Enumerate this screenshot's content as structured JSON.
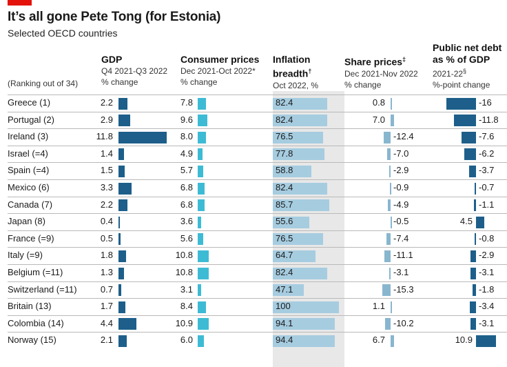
{
  "header": {
    "title": "It’s all gone Pete Tong (for Estonia)",
    "subtitle": "Selected OECD countries",
    "ranking_note": "(Ranking out of 34)"
  },
  "columns": [
    {
      "key": "gdp",
      "title": "GDP",
      "lines": [
        "Q4 2021-Q3 2022",
        "% change"
      ]
    },
    {
      "key": "cpi",
      "title": "Consumer prices",
      "lines": [
        "Dec 2021-Oct 2022*",
        "% change"
      ]
    },
    {
      "key": "infl",
      "title_lines": [
        "Inflation",
        "breadth"
      ],
      "mark": "†",
      "lines": [
        "Oct 2022, %"
      ]
    },
    {
      "key": "share",
      "title": "Share prices",
      "mark": "‡",
      "lines": [
        "Dec 2021-Nov 2022",
        "% change"
      ]
    },
    {
      "key": "debt",
      "title_lines": [
        "Public net debt",
        "as % of GDP"
      ],
      "lines": [
        "2021-22",
        "%-point change"
      ],
      "mark": "§"
    }
  ],
  "colors": {
    "gdp": "#1d5f8a",
    "cpi": "#3ebbd4",
    "infl": "#a6cce0",
    "share": "#89b6cf",
    "debt": "#1d5f8a",
    "band": "#e8e8e8",
    "accent": "#e3120b"
  },
  "chart_data": {
    "type": "table",
    "title": "It’s all gone Pete Tong (for Estonia)",
    "subtitle": "Selected OECD countries",
    "rows": [
      {
        "country": "Greece (1)",
        "gdp": 2.2,
        "cpi": 7.8,
        "infl": 82.4,
        "share": 0.8,
        "debt": -16,
        "gdp_t": "2.2",
        "cpi_t": "7.8",
        "infl_t": "82.4",
        "share_t": "0.8",
        "debt_t": "-16"
      },
      {
        "country": "Portugal (2)",
        "gdp": 2.9,
        "cpi": 9.6,
        "infl": 82.4,
        "share": 7.0,
        "debt": -11.8,
        "gdp_t": "2.9",
        "cpi_t": "9.6",
        "infl_t": "82.4",
        "share_t": "7.0",
        "debt_t": "-11.8"
      },
      {
        "country": "Ireland (3)",
        "gdp": 11.8,
        "cpi": 8.0,
        "infl": 76.5,
        "share": -12.4,
        "debt": -7.6,
        "gdp_t": "11.8",
        "cpi_t": "8.0",
        "infl_t": "76.5",
        "share_t": "-12.4",
        "debt_t": "-7.6"
      },
      {
        "country": "Israel (=4)",
        "gdp": 1.4,
        "cpi": 4.9,
        "infl": 77.8,
        "share": -7.0,
        "debt": -6.2,
        "gdp_t": "1.4",
        "cpi_t": "4.9",
        "infl_t": "77.8",
        "share_t": "-7.0",
        "debt_t": "-6.2"
      },
      {
        "country": "Spain (=4)",
        "gdp": 1.5,
        "cpi": 5.7,
        "infl": 58.8,
        "share": -2.9,
        "debt": -3.7,
        "gdp_t": "1.5",
        "cpi_t": "5.7",
        "infl_t": "58.8",
        "share_t": "-2.9",
        "debt_t": "-3.7"
      },
      {
        "country": "Mexico (6)",
        "gdp": 3.3,
        "cpi": 6.8,
        "infl": 82.4,
        "share": -0.9,
        "debt": -0.7,
        "gdp_t": "3.3",
        "cpi_t": "6.8",
        "infl_t": "82.4",
        "share_t": "-0.9",
        "debt_t": "-0.7"
      },
      {
        "country": "Canada (7)",
        "gdp": 2.2,
        "cpi": 6.8,
        "infl": 85.7,
        "share": -4.9,
        "debt": -1.1,
        "gdp_t": "2.2",
        "cpi_t": "6.8",
        "infl_t": "85.7",
        "share_t": "-4.9",
        "debt_t": "-1.1"
      },
      {
        "country": "Japan (8)",
        "gdp": 0.4,
        "cpi": 3.6,
        "infl": 55.6,
        "share": -0.5,
        "debt": 4.5,
        "gdp_t": "0.4",
        "cpi_t": "3.6",
        "infl_t": "55.6",
        "share_t": "-0.5",
        "debt_t": "4.5"
      },
      {
        "country": "France (=9)",
        "gdp": 0.5,
        "cpi": 5.6,
        "infl": 76.5,
        "share": -7.4,
        "debt": -0.8,
        "gdp_t": "0.5",
        "cpi_t": "5.6",
        "infl_t": "76.5",
        "share_t": "-7.4",
        "debt_t": "-0.8"
      },
      {
        "country": "Italy (=9)",
        "gdp": 1.8,
        "cpi": 10.8,
        "infl": 64.7,
        "share": -11.1,
        "debt": -2.9,
        "gdp_t": "1.8",
        "cpi_t": "10.8",
        "infl_t": "64.7",
        "share_t": "-11.1",
        "debt_t": "-2.9"
      },
      {
        "country": "Belgium (=11)",
        "gdp": 1.3,
        "cpi": 10.8,
        "infl": 82.4,
        "share": -3.1,
        "debt": -3.1,
        "gdp_t": "1.3",
        "cpi_t": "10.8",
        "infl_t": "82.4",
        "share_t": "-3.1",
        "debt_t": "-3.1"
      },
      {
        "country": "Switzerland (=11)",
        "gdp": 0.7,
        "cpi": 3.1,
        "infl": 47.1,
        "share": -15.3,
        "debt": -1.8,
        "gdp_t": "0.7",
        "cpi_t": "3.1",
        "infl_t": "47.1",
        "share_t": "-15.3",
        "debt_t": "-1.8"
      },
      {
        "country": "Britain (13)",
        "gdp": 1.7,
        "cpi": 8.4,
        "infl": 100,
        "share": 1.1,
        "debt": -3.4,
        "gdp_t": "1.7",
        "cpi_t": "8.4",
        "infl_t": "100",
        "share_t": "1.1",
        "debt_t": "-3.4"
      },
      {
        "country": "Colombia (14)",
        "gdp": 4.4,
        "cpi": 10.9,
        "infl": 94.1,
        "share": -10.2,
        "debt": -3.1,
        "gdp_t": "4.4",
        "cpi_t": "10.9",
        "infl_t": "94.1",
        "share_t": "-10.2",
        "debt_t": "-3.1"
      },
      {
        "country": "Norway (15)",
        "gdp": 2.1,
        "cpi": 6.0,
        "infl": 94.4,
        "share": 6.7,
        "debt": 10.9,
        "gdp_t": "2.1",
        "cpi_t": "6.0",
        "infl_t": "94.4",
        "share_t": "6.7",
        "debt_t": "10.9"
      }
    ]
  }
}
